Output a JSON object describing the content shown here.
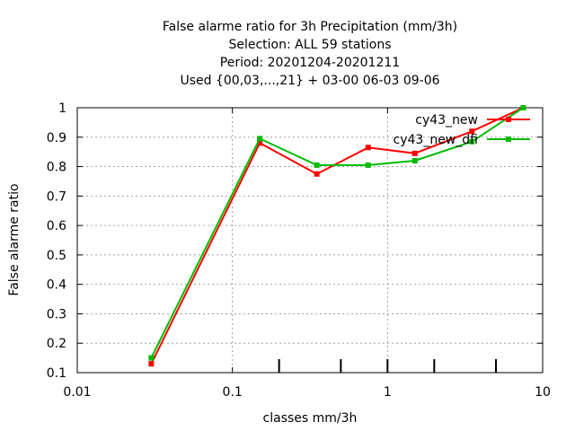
{
  "chart_data": {
    "type": "line",
    "title_lines": [
      "False alarme ratio  for 3h Precipitation (mm/3h)",
      "Selection: ALL      59 stations",
      "Period: 20201204-20201211",
      "Used {00,03,...,21} + 03-00 06-03 09-06"
    ],
    "xlabel": "classes mm/3h",
    "ylabel": "False alarme ratio",
    "x_scale": "log",
    "xlim": [
      0.01,
      10
    ],
    "ylim": [
      0.1,
      1
    ],
    "x_ticks": [
      {
        "value": 0.01,
        "label": "0.01"
      },
      {
        "value": 0.1,
        "label": "0.1"
      },
      {
        "value": 1,
        "label": "1"
      },
      {
        "value": 10,
        "label": "10"
      }
    ],
    "y_ticks": [
      {
        "value": 0.1,
        "label": "0.1"
      },
      {
        "value": 0.2,
        "label": "0.2"
      },
      {
        "value": 0.3,
        "label": "0.3"
      },
      {
        "value": 0.4,
        "label": "0.4"
      },
      {
        "value": 0.5,
        "label": "0.5"
      },
      {
        "value": 0.6,
        "label": "0.6"
      },
      {
        "value": 0.7,
        "label": "0.7"
      },
      {
        "value": 0.8,
        "label": "0.8"
      },
      {
        "value": 0.9,
        "label": "0.9"
      },
      {
        "value": 1,
        "label": "1"
      }
    ],
    "class_marks": [
      0.2,
      0.5,
      1,
      2,
      5
    ],
    "grid": true,
    "legend_position": "top-right",
    "series": [
      {
        "name": "cy43_new",
        "color": "#ff0000",
        "x": [
          0.03,
          0.15,
          0.35,
          0.75,
          1.5,
          3.5,
          7.5
        ],
        "y": [
          0.13,
          0.88,
          0.775,
          0.865,
          0.845,
          0.92,
          1.0
        ]
      },
      {
        "name": "cy43_new_dfi",
        "color": "#00bb00",
        "x": [
          0.03,
          0.15,
          0.35,
          0.75,
          1.5,
          3.5,
          7.5
        ],
        "y": [
          0.15,
          0.895,
          0.805,
          0.805,
          0.82,
          0.885,
          1.0
        ]
      }
    ]
  }
}
